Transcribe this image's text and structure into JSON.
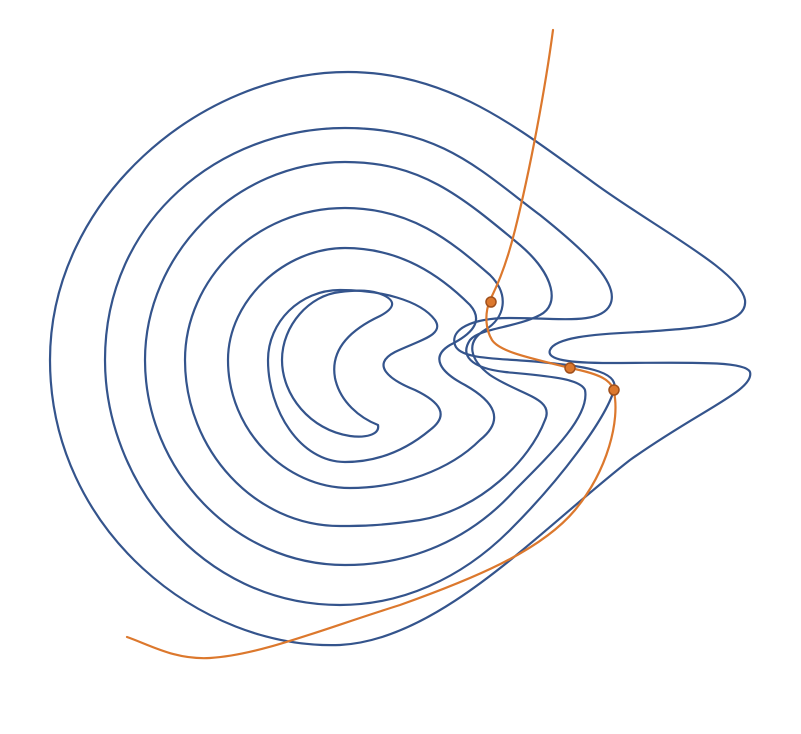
{
  "colors": {
    "background": "#ffffff",
    "contour": "#34548c",
    "trajectory": "#dc782d",
    "point_fill": "#dc782d",
    "point_stroke": "#a0501c"
  }
}
